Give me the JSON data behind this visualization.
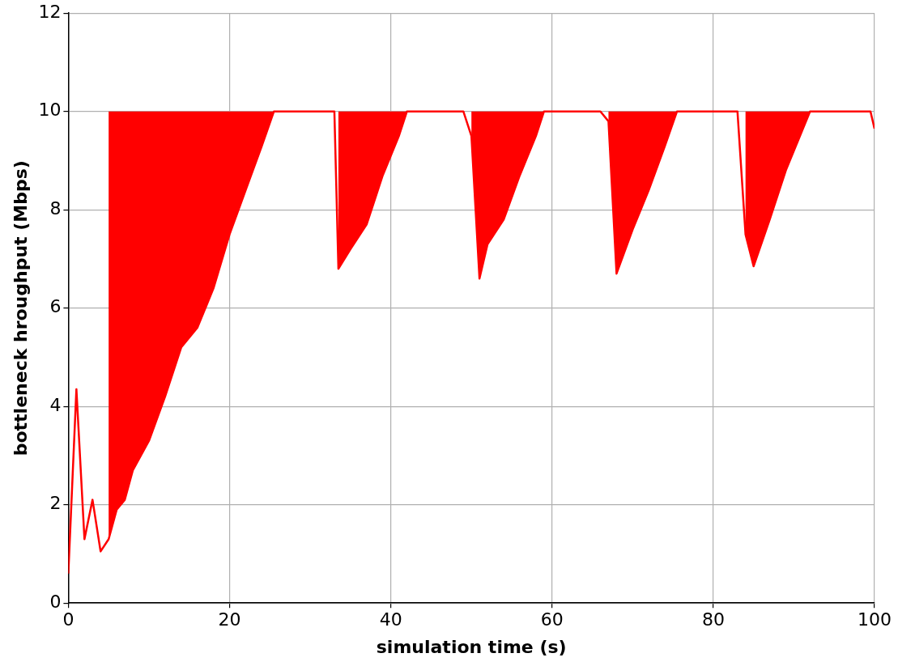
{
  "chart_data": {
    "type": "line",
    "xlabel": "simulation time (s)",
    "ylabel": "bottleneck hroughput (Mbps)",
    "xlim": [
      0,
      100
    ],
    "ylim": [
      0,
      12
    ],
    "xticks": [
      0,
      20,
      40,
      60,
      80,
      100
    ],
    "yticks": [
      0,
      2,
      4,
      6,
      8,
      10,
      12
    ],
    "grid": true,
    "legend": false,
    "marker": "none",
    "line_style": "solid",
    "series": [
      {
        "color": "#ff0000",
        "x": [
          0,
          1,
          2,
          3,
          4,
          5,
          6,
          7,
          8,
          10,
          12,
          14,
          16,
          18,
          20,
          22,
          24,
          25.5,
          33,
          33.5,
          35,
          37,
          39,
          41,
          42,
          49,
          50,
          51,
          52,
          54,
          56,
          58,
          59,
          66,
          67,
          68,
          70,
          72,
          74,
          75.5,
          83,
          84,
          85,
          87,
          89,
          91,
          92,
          99.5,
          100
        ],
        "values": [
          0.6,
          4.35,
          1.3,
          2.1,
          1.05,
          1.3,
          1.9,
          2.1,
          2.7,
          3.3,
          4.2,
          5.2,
          5.6,
          6.4,
          7.5,
          8.4,
          9.3,
          10,
          10,
          6.8,
          7.2,
          7.7,
          8.7,
          9.5,
          10,
          10,
          9.5,
          6.6,
          7.3,
          7.8,
          8.7,
          9.5,
          10,
          10,
          9.8,
          6.7,
          7.6,
          8.4,
          9.3,
          10,
          10,
          7.5,
          6.85,
          7.8,
          8.8,
          9.6,
          10,
          10,
          9.65
        ],
        "lower": [
          null,
          null,
          null,
          null,
          null,
          1.3,
          1.9,
          2.1,
          2.7,
          3.3,
          4.2,
          5.2,
          5.6,
          6.4,
          7.5,
          8.4,
          9.3,
          10,
          null,
          6.8,
          7.2,
          7.7,
          8.7,
          9.5,
          10,
          null,
          9.5,
          6.6,
          7.3,
          7.8,
          8.7,
          9.5,
          10,
          null,
          9.8,
          6.7,
          7.6,
          8.4,
          9.3,
          10,
          null,
          7.5,
          6.85,
          7.8,
          8.8,
          9.6,
          10,
          null,
          null
        ],
        "upper": [
          null,
          null,
          null,
          null,
          null,
          10,
          10,
          10,
          10,
          10,
          10,
          10,
          10,
          10,
          10,
          10,
          10,
          10,
          null,
          10,
          10,
          10,
          10,
          10,
          10,
          null,
          10,
          10,
          10,
          10,
          10,
          10,
          10,
          null,
          10,
          10,
          10,
          10,
          10,
          10,
          null,
          10,
          10,
          10,
          10,
          10,
          10,
          null,
          null
        ]
      }
    ]
  }
}
